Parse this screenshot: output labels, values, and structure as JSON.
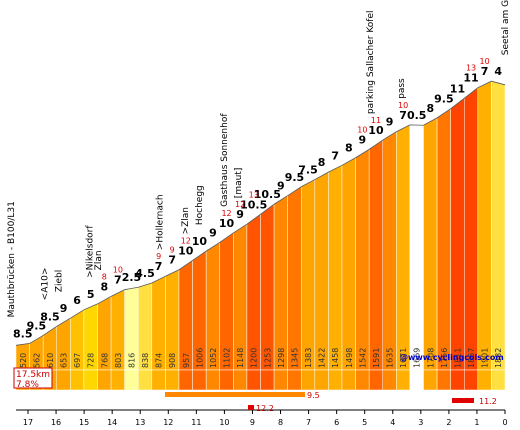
{
  "chart_data": {
    "type": "area",
    "title": "",
    "total_distance_km": "17.5km",
    "average_gradient": "7.8%",
    "credit": "@www.cyclingcols.com",
    "x_ticks": [
      "17",
      "16",
      "15",
      "14",
      "13",
      "12",
      "11",
      "10",
      "9",
      "8",
      "7",
      "6",
      "5",
      "4",
      "3",
      "2",
      "1",
      "0"
    ],
    "segments": [
      {
        "grad": "8.5",
        "alt": "520",
        "color": "#FFA500"
      },
      {
        "grad": "9.5",
        "alt": "562",
        "color": "#FFA500"
      },
      {
        "grad": "8.5",
        "alt": "610",
        "color": "#FFA500"
      },
      {
        "grad": "9",
        "alt": "653",
        "color": "#FFA500"
      },
      {
        "grad": "6",
        "alt": "697",
        "color": "#FFC000"
      },
      {
        "grad": "5",
        "alt": "728",
        "color": "#FFD700"
      },
      {
        "grad": "8",
        "alt": "768",
        "color": "#FFA500"
      },
      {
        "grad": "7",
        "alt": "803",
        "color": "#FFB000"
      },
      {
        "grad": "2.5",
        "alt": "816",
        "color": "#FFFF99"
      },
      {
        "grad": "4.5",
        "alt": "838",
        "color": "#FFE040"
      },
      {
        "grad": "7",
        "alt": "874",
        "color": "#FFB000"
      },
      {
        "grad": "7",
        "alt": "908",
        "color": "#FFB000"
      },
      {
        "grad": "10",
        "alt": "957",
        "color": "#FF6600"
      },
      {
        "grad": "10",
        "alt": "1006",
        "color": "#FF6600"
      },
      {
        "grad": "9",
        "alt": "1052",
        "color": "#FF8800"
      },
      {
        "grad": "10",
        "alt": "1102",
        "color": "#FF6600"
      },
      {
        "grad": "9",
        "alt": "1148",
        "color": "#FF8800"
      },
      {
        "grad": "10.5",
        "alt": "1200",
        "color": "#FF5500"
      },
      {
        "grad": "10.5",
        "alt": "1253",
        "color": "#FF5500"
      },
      {
        "grad": "9",
        "alt": "1298",
        "color": "#FF8800"
      },
      {
        "grad": "9.5",
        "alt": "1345",
        "color": "#FF7700"
      },
      {
        "grad": "7.5",
        "alt": "1383",
        "color": "#FFA500"
      },
      {
        "grad": "8",
        "alt": "1422",
        "color": "#FFA500"
      },
      {
        "grad": "7",
        "alt": "1458",
        "color": "#FFB000"
      },
      {
        "grad": "8",
        "alt": "1498",
        "color": "#FFA500"
      },
      {
        "grad": "9",
        "alt": "1542",
        "color": "#FF8800"
      },
      {
        "grad": "10",
        "alt": "1591",
        "color": "#FF6600"
      },
      {
        "grad": "9",
        "alt": "1635",
        "color": "#FF8800"
      },
      {
        "grad": "7",
        "alt": "1671",
        "color": "#FFB000"
      },
      {
        "grad": "0.5",
        "alt": "1669",
        "color": "#FFFFFF"
      },
      {
        "grad": "8",
        "alt": "1708",
        "color": "#FFA500"
      },
      {
        "grad": "9.5",
        "alt": "1756",
        "color": "#FF7700"
      },
      {
        "grad": "11",
        "alt": "1811",
        "color": "#FF4400"
      },
      {
        "grad": "11",
        "alt": "1867",
        "color": "#FF4400"
      },
      {
        "grad": "7",
        "alt": "1901",
        "color": "#FFB000"
      },
      {
        "grad": "4",
        "alt": "1882",
        "color": "#FFE040"
      }
    ],
    "max_gradients": [
      {
        "after": "6",
        "value": "8"
      },
      {
        "after": "7",
        "value": "10"
      },
      {
        "after": "10",
        "value": "9"
      },
      {
        "after": "11",
        "value": "9"
      },
      {
        "after": "12",
        "value": "12"
      },
      {
        "after": "15",
        "value": "12"
      },
      {
        "after": "16",
        "value": "12"
      },
      {
        "after": "17",
        "value": "13"
      },
      {
        "after": "25",
        "value": "10"
      },
      {
        "after": "26",
        "value": "11"
      },
      {
        "after": "28",
        "value": "10"
      },
      {
        "after": "33",
        "value": "13"
      },
      {
        "after": "34",
        "value": "10"
      }
    ],
    "places": [
      {
        "label": "Mauthbrücken - B100/L31",
        "km": 17.5
      },
      {
        "label": "<A10>",
        "km": 16.3
      },
      {
        "label": "Ziebl",
        "km": 15.8
      },
      {
        "label": ">Nikelsdorf",
        "km": 14.7
      },
      {
        "label": "Zlan",
        "km": 14.4
      },
      {
        "label": ">Hollernach",
        "km": 12.2
      },
      {
        "label": ">Zlan",
        "km": 11.3
      },
      {
        "label": "Hochegg",
        "km": 10.8
      },
      {
        "label": "Gasthaus Sonnenhof",
        "km": 9.9
      },
      {
        "label": "[maut]",
        "km": 9.4
      },
      {
        "label": "parking Sallacher Kofel",
        "km": 4.7
      },
      {
        "label": "pass",
        "km": 3.6
      },
      {
        "label": "Seetal am Goldeck",
        "km": 0
      }
    ],
    "max_bars": [
      {
        "value": "9.5"
      },
      {
        "value": "12.2"
      },
      {
        "value": "11.2"
      }
    ]
  }
}
